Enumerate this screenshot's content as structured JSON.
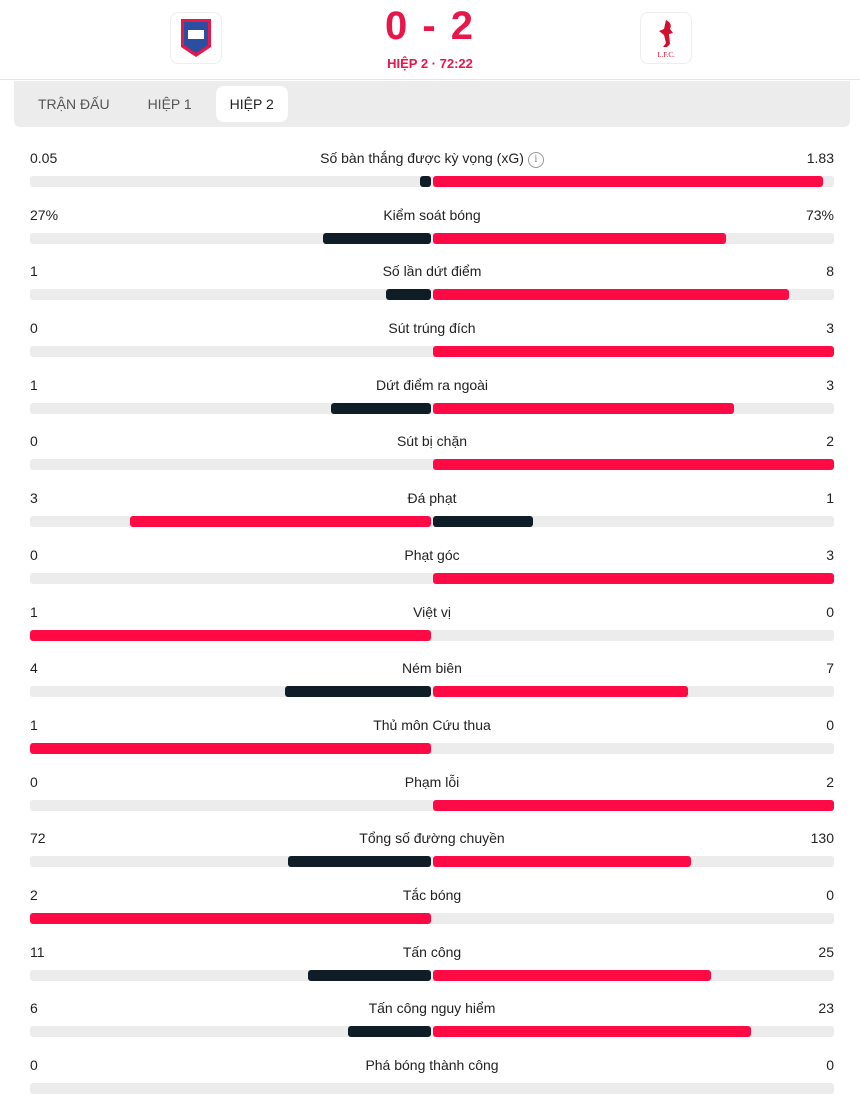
{
  "match": {
    "score": "0 - 2",
    "period": "HIỆP 2 · 72:22",
    "home_logo": "Ipswich Town crest",
    "away_logo": "L.F.C."
  },
  "tabs": [
    {
      "label": "TRẬN ĐẤU",
      "active": false
    },
    {
      "label": "HIỆP 1",
      "active": false
    },
    {
      "label": "HIỆP 2",
      "active": true
    }
  ],
  "colors": {
    "leader": "#ff0a45",
    "trailer": "#0f1e26",
    "track": "#ececec",
    "accent": "#e8174a"
  },
  "stats": [
    {
      "label": "Số bàn thắng được kỳ vọng (xG)",
      "home": "0.05",
      "away": "1.83",
      "h": 0.05,
      "a": 1.83,
      "info": true
    },
    {
      "label": "Kiểm soát bóng",
      "home": "27%",
      "away": "73%",
      "h": 27,
      "a": 73
    },
    {
      "label": "Số lần dứt điểm",
      "home": "1",
      "away": "8",
      "h": 1,
      "a": 8
    },
    {
      "label": "Sút trúng đích",
      "home": "0",
      "away": "3",
      "h": 0,
      "a": 3
    },
    {
      "label": "Dứt điểm ra ngoài",
      "home": "1",
      "away": "3",
      "h": 1,
      "a": 3
    },
    {
      "label": "Sút bị chặn",
      "home": "0",
      "away": "2",
      "h": 0,
      "a": 2
    },
    {
      "label": "Đá phạt",
      "home": "3",
      "away": "1",
      "h": 3,
      "a": 1
    },
    {
      "label": "Phạt góc",
      "home": "0",
      "away": "3",
      "h": 0,
      "a": 3
    },
    {
      "label": "Việt vị",
      "home": "1",
      "away": "0",
      "h": 1,
      "a": 0
    },
    {
      "label": "Ném biên",
      "home": "4",
      "away": "7",
      "h": 4,
      "a": 7
    },
    {
      "label": "Thủ môn Cứu thua",
      "home": "1",
      "away": "0",
      "h": 1,
      "a": 0
    },
    {
      "label": "Phạm lỗi",
      "home": "0",
      "away": "2",
      "h": 0,
      "a": 2
    },
    {
      "label": "Tổng số đường chuyền",
      "home": "72",
      "away": "130",
      "h": 72,
      "a": 130
    },
    {
      "label": "Tắc bóng",
      "home": "2",
      "away": "0",
      "h": 2,
      "a": 0
    },
    {
      "label": "Tấn công",
      "home": "11",
      "away": "25",
      "h": 11,
      "a": 25
    },
    {
      "label": "Tấn công nguy hiểm",
      "home": "6",
      "away": "23",
      "h": 6,
      "a": 23
    },
    {
      "label": "Phá bóng thành công",
      "home": "0",
      "away": "0",
      "h": 0,
      "a": 0
    }
  ]
}
